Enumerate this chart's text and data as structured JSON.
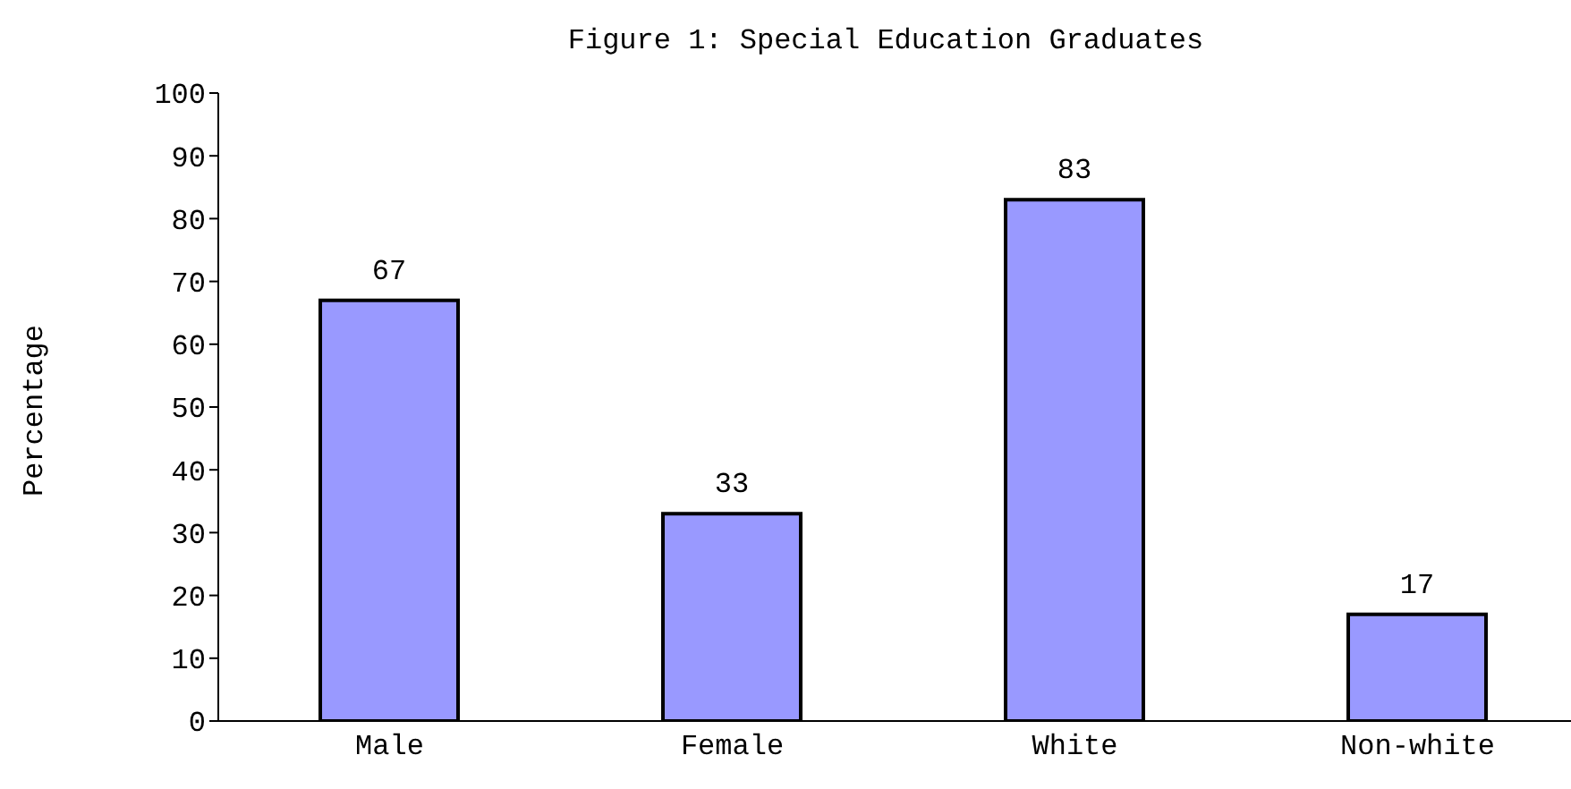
{
  "chart_data": {
    "type": "bar",
    "title": "Figure 1: Special Education Graduates",
    "ylabel": "Percentage",
    "categories": [
      "Male",
      "Female",
      "White",
      "Non-white"
    ],
    "values": [
      67,
      33,
      83,
      17
    ],
    "color": "#9999ff",
    "ylim": [
      0,
      100
    ],
    "yticks": [
      0,
      10,
      20,
      30,
      40,
      50,
      60,
      70,
      80,
      90,
      100
    ],
    "grid": false,
    "data_labels": true
  }
}
